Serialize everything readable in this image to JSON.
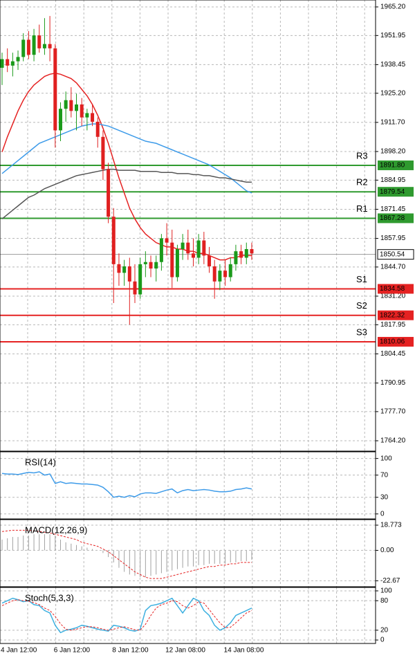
{
  "chart_data": [
    {
      "type": "candlestick",
      "categories": [
        "4 Jan 12:00",
        null,
        null,
        null,
        null,
        null,
        null,
        null,
        null,
        null,
        "6 Jan 12:00",
        null,
        null,
        null,
        null,
        null,
        null,
        null,
        null,
        null,
        null,
        "8 Jan 12:00",
        null,
        null,
        null,
        null,
        null,
        null,
        null,
        null,
        null,
        "12 Jan 08:00",
        null,
        null,
        null,
        null,
        null,
        null,
        null,
        null,
        null,
        null,
        "14 Jan 08:00",
        null,
        null,
        null,
        null,
        null
      ],
      "open": [
        1937,
        1941,
        1938,
        1940,
        1942,
        1950,
        1943,
        1952,
        1946,
        1948,
        1946,
        1908,
        1918,
        1922,
        1917,
        1920,
        1914,
        1916,
        1912,
        1905,
        1890,
        1868,
        1846,
        1842,
        1845,
        1838,
        1832,
        1846,
        1847,
        1844,
        1847,
        1858,
        1856,
        1840,
        1853,
        1856,
        1851,
        1849,
        1857,
        1850,
        1845,
        1838,
        1843,
        1840,
        1846,
        1852,
        1849,
        1853
      ],
      "high": [
        1944,
        1946,
        1944,
        1945,
        1953,
        1954,
        1955,
        1957,
        1960,
        1961,
        1948,
        1921,
        1926,
        1928,
        1925,
        1923,
        1918,
        1920,
        1914,
        1908,
        1893,
        1872,
        1851,
        1848,
        1849,
        1846,
        1849,
        1852,
        1850,
        1850,
        1860,
        1865,
        1862,
        1855,
        1860,
        1862,
        1858,
        1860,
        1861,
        1854,
        1848,
        1846,
        1848,
        1849,
        1855,
        1855,
        1856,
        1856
      ],
      "low": [
        1929,
        1935,
        1933,
        1936,
        1940,
        1941,
        1940,
        1944,
        1943,
        1940,
        1900,
        1903,
        1912,
        1914,
        1908,
        1910,
        1908,
        1910,
        1900,
        1885,
        1865,
        1828,
        1836,
        1836,
        1818,
        1828,
        1830,
        1840,
        1840,
        1838,
        1843,
        1850,
        1835,
        1838,
        1848,
        1848,
        1845,
        1846,
        1846,
        1842,
        1830,
        1834,
        1836,
        1838,
        1843,
        1846,
        1846,
        1848
      ],
      "close": [
        1941,
        1938,
        1940,
        1942,
        1950,
        1943,
        1952,
        1946,
        1948,
        1946,
        1908,
        1918,
        1922,
        1917,
        1920,
        1914,
        1916,
        1912,
        1905,
        1890,
        1868,
        1846,
        1842,
        1845,
        1838,
        1832,
        1846,
        1847,
        1844,
        1847,
        1858,
        1856,
        1840,
        1853,
        1856,
        1851,
        1849,
        1857,
        1850,
        1845,
        1838,
        1843,
        1840,
        1846,
        1852,
        1849,
        1853,
        1851
      ],
      "up_color": "#1a9a1a",
      "down_color": "#e02020",
      "series": [
        {
          "color": "#e52222",
          "values": [
            1898,
            1905,
            1911,
            1917,
            1922,
            1926,
            1929,
            1931,
            1933,
            1934,
            1934.5,
            1934,
            1933,
            1932,
            1930,
            1927,
            1924,
            1920,
            1915,
            1909,
            1902,
            1894,
            1886,
            1879,
            1872,
            1867,
            1863,
            1860,
            1858,
            1856,
            1855,
            1854,
            1854,
            1853,
            1853,
            1852,
            1852,
            1851,
            1851,
            1850,
            1849,
            1848,
            1848,
            1849,
            1849,
            1850,
            1850,
            1850
          ]
        },
        {
          "color": "#3d9be9",
          "values": [
            1888,
            1890,
            1892,
            1894,
            1896,
            1898,
            1900,
            1902,
            1903,
            1904,
            1905,
            1906,
            1907,
            1908,
            1909,
            1910,
            1910.5,
            1911,
            1911,
            1910.5,
            1910,
            1909,
            1908,
            1907,
            1906,
            1905,
            1904,
            1903,
            1902.5,
            1902,
            1901,
            1900,
            1899,
            1898,
            1897,
            1896,
            1895,
            1894,
            1893,
            1892,
            1890.5,
            1889,
            1887.5,
            1886,
            1884,
            1882,
            1880,
            1879
          ]
        },
        {
          "color": "#555555",
          "values": [
            1867,
            1869,
            1871,
            1873,
            1875,
            1877,
            1878,
            1879.5,
            1881,
            1882,
            1883,
            1884,
            1885,
            1886,
            1887,
            1887.5,
            1888,
            1888.5,
            1889,
            1889.5,
            1890,
            1890,
            1889.5,
            1889.5,
            1889.5,
            1889.5,
            1889,
            1889,
            1889,
            1889,
            1888.5,
            1888.5,
            1888.5,
            1888,
            1888,
            1888,
            1887.5,
            1887.5,
            1887,
            1887,
            1886.5,
            1886,
            1886,
            1885.5,
            1885,
            1884.5,
            1884,
            1884
          ]
        }
      ],
      "levels": [
        {
          "name": "R3",
          "value": 1891.8,
          "label": "1891.80",
          "color": "#2f9a2f"
        },
        {
          "name": "R2",
          "value": 1879.54,
          "label": "1879.54",
          "color": "#2f9a2f"
        },
        {
          "name": "R1",
          "value": 1867.28,
          "label": "1867.28",
          "color": "#2f9a2f"
        },
        {
          "name": "S1",
          "value": 1834.58,
          "label": "1834.58",
          "color": "#e52222"
        },
        {
          "name": "S2",
          "value": 1822.32,
          "label": "1822.32",
          "color": "#e52222"
        },
        {
          "name": "S3",
          "value": 1810.06,
          "label": "1810.06",
          "color": "#e52222"
        }
      ],
      "last_price": {
        "value": 1850.54,
        "label": "1850.54"
      },
      "ylim": [
        1759.4,
        1968.4
      ],
      "yticks": [
        {
          "value": 1965.2,
          "label": "1965.20"
        },
        {
          "value": 1951.95,
          "label": "1951.95"
        },
        {
          "value": 1938.45,
          "label": "1938.45"
        },
        {
          "value": 1925.2,
          "label": "1925.20"
        },
        {
          "value": 1911.7,
          "label": "1911.70"
        },
        {
          "value": 1898.2,
          "label": "1898.20"
        },
        {
          "value": 1884.95,
          "label": "1884.95"
        },
        {
          "value": 1871.45,
          "label": "1871.45"
        },
        {
          "value": 1857.95,
          "label": "1857.95"
        },
        {
          "value": 1844.7,
          "label": "1844.70"
        },
        {
          "value": 1831.2,
          "label": "1831.20"
        },
        {
          "value": 1817.95,
          "label": "1817.95"
        },
        {
          "value": 1804.45,
          "label": "1804.45"
        },
        {
          "value": 1790.95,
          "label": "1790.95"
        },
        {
          "value": 1777.7,
          "label": "1777.70"
        },
        {
          "value": 1764.2,
          "label": "1764.20"
        }
      ],
      "grid": true
    },
    {
      "type": "line",
      "title": "RSI(14)",
      "series": [
        {
          "color": "#3d9be9",
          "style": "solid",
          "values": [
            73,
            72,
            72,
            71,
            73,
            75,
            74,
            76,
            70,
            72,
            55,
            58,
            55,
            56,
            55,
            54,
            54,
            53,
            52,
            48,
            40,
            30,
            32,
            30,
            33,
            31,
            36,
            38,
            38,
            37,
            40,
            43,
            45,
            38,
            42,
            44,
            42,
            43,
            44,
            43,
            41,
            40,
            40,
            41,
            44,
            45,
            47,
            45
          ]
        }
      ],
      "ylim": [
        -9,
        112
      ],
      "yticks": [
        100,
        70,
        30,
        0
      ],
      "grid": true
    },
    {
      "type": "macd",
      "title": "MACD(12,26,9)",
      "series": [
        {
          "color": "#a0a0a0",
          "style": "bar",
          "values": [
            8,
            9,
            10,
            10,
            11,
            11,
            12,
            12,
            12,
            12,
            11,
            8,
            6,
            5,
            4,
            3,
            2,
            1,
            0,
            -2,
            -5,
            -9,
            -13,
            -16,
            -18,
            -19,
            -20,
            -20,
            -19,
            -18,
            -17,
            -16,
            -15,
            -14,
            -13,
            -12,
            -12,
            -11,
            -11,
            -10,
            -10,
            -10,
            -10,
            -9,
            -9,
            -8,
            -8,
            -7
          ]
        },
        {
          "color": "#e52222",
          "style": "dashed",
          "values": [
            14,
            14.5,
            15,
            15,
            15,
            15,
            14.5,
            14,
            13.5,
            13,
            12,
            11,
            10,
            9,
            8,
            6,
            5,
            4,
            3,
            1,
            -1,
            -4,
            -7,
            -10,
            -13,
            -16,
            -18,
            -20,
            -21,
            -21,
            -21,
            -20,
            -19,
            -18,
            -17,
            -16,
            -15,
            -14,
            -13,
            -12,
            -12,
            -11,
            -11,
            -10,
            -10,
            -9,
            -9,
            -9
          ]
        }
      ],
      "ylim": [
        -27.1,
        22.9
      ],
      "yticks": [
        18.773,
        {
          "value": 0,
          "label": "0.00"
        },
        -22.67
      ],
      "grid": true
    },
    {
      "type": "line",
      "title": "Stoch(5,3,3)",
      "series": [
        {
          "color": "#3db0e0",
          "style": "solid",
          "values": [
            75,
            80,
            85,
            82,
            78,
            80,
            72,
            70,
            60,
            55,
            30,
            15,
            20,
            22,
            25,
            30,
            28,
            25,
            22,
            20,
            18,
            30,
            28,
            25,
            20,
            18,
            22,
            60,
            70,
            72,
            75,
            80,
            85,
            70,
            55,
            70,
            85,
            80,
            60,
            50,
            30,
            20,
            25,
            35,
            50,
            55,
            60,
            65
          ]
        },
        {
          "color": "#e52222",
          "style": "dashed",
          "values": [
            70,
            75,
            80,
            82,
            80,
            79,
            76,
            72,
            65,
            60,
            48,
            33,
            22,
            20,
            22,
            25,
            27,
            27,
            25,
            22,
            20,
            22,
            25,
            27,
            24,
            21,
            20,
            32,
            50,
            65,
            72,
            75,
            80,
            78,
            70,
            65,
            70,
            78,
            75,
            62,
            48,
            35,
            25,
            26,
            35,
            45,
            55,
            60
          ]
        }
      ],
      "ylim": [
        -7,
        107
      ],
      "yticks": [
        100,
        80,
        20,
        0
      ],
      "grid": true
    }
  ]
}
